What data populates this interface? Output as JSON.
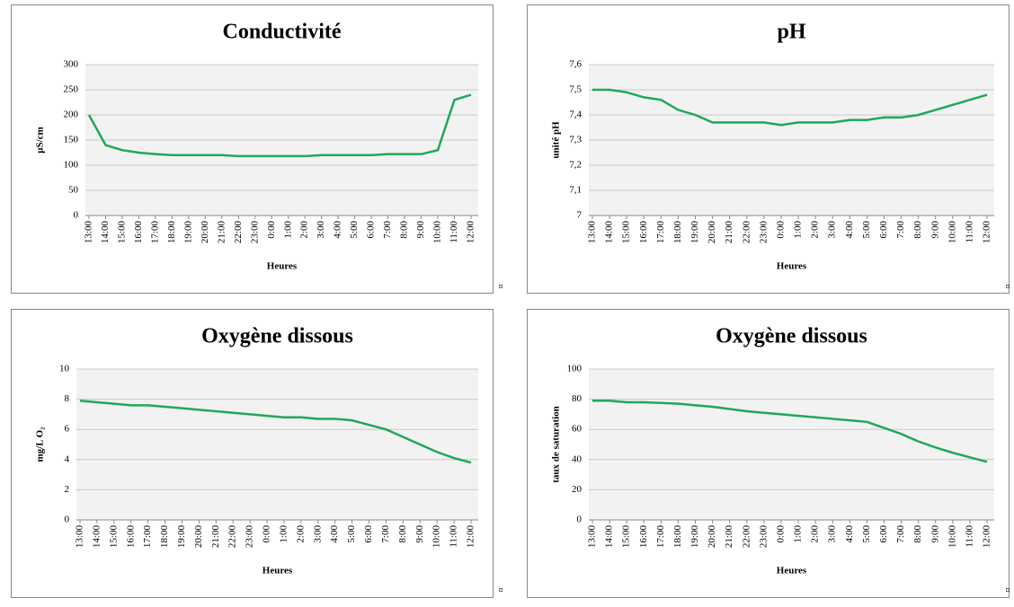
{
  "chart_data": [
    {
      "type": "line",
      "title": "Conductivité",
      "y_label": "µS/cm",
      "x_label": "Heures",
      "categories": [
        "13:00",
        "14:00",
        "15:00",
        "16:00",
        "17:00",
        "18:00",
        "19:00",
        "20:00",
        "21:00",
        "22:00",
        "23:00",
        "0:00",
        "1:00",
        "2:00",
        "3:00",
        "4:00",
        "5:00",
        "6:00",
        "7:00",
        "8:00",
        "9:00",
        "10:00",
        "11:00",
        "12:00"
      ],
      "series": [
        {
          "color": "#1fa85a",
          "values": [
            200,
            140,
            130,
            125,
            122,
            120,
            120,
            120,
            120,
            118,
            118,
            118,
            118,
            118,
            120,
            120,
            120,
            120,
            122,
            122,
            122,
            130,
            230,
            240
          ]
        }
      ],
      "ylim": [
        0,
        300
      ],
      "yticks": [
        0,
        50,
        100,
        150,
        200,
        250,
        300
      ],
      "grid": true
    },
    {
      "type": "line",
      "title": "pH",
      "y_label": "unité pH",
      "x_label": "Heures",
      "categories": [
        "13:00",
        "14:00",
        "15:00",
        "16:00",
        "17:00",
        "18:00",
        "19:00",
        "20:00",
        "21:00",
        "22:00",
        "23:00",
        "0:00",
        "1:00",
        "2:00",
        "3:00",
        "4:00",
        "5:00",
        "6:00",
        "7:00",
        "8:00",
        "9:00",
        "10:00",
        "11:00",
        "12:00"
      ],
      "series": [
        {
          "color": "#1fa85a",
          "values": [
            7.5,
            7.5,
            7.49,
            7.47,
            7.46,
            7.42,
            7.4,
            7.37,
            7.37,
            7.37,
            7.37,
            7.36,
            7.37,
            7.37,
            7.37,
            7.38,
            7.38,
            7.39,
            7.39,
            7.4,
            7.42,
            7.44,
            7.46,
            7.48
          ]
        }
      ],
      "ylim": [
        7,
        7.6
      ],
      "yticks": [
        7,
        {
          "value": 7.1,
          "label": "7,1"
        },
        {
          "value": 7.2,
          "label": "7,2"
        },
        {
          "value": 7.3,
          "label": "7,3"
        },
        {
          "value": 7.4,
          "label": "7,4"
        },
        {
          "value": 7.5,
          "label": "7,5"
        },
        {
          "value": 7.6,
          "label": "7,6"
        }
      ],
      "grid": true
    },
    {
      "type": "line",
      "title": "Oxygène dissous",
      "y_label": "mg/L O₂",
      "x_label": "Heures",
      "categories": [
        "13:00",
        "14:00",
        "15:00",
        "16:00",
        "17:00",
        "18:00",
        "19:00",
        "20:00",
        "21:00",
        "22:00",
        "23:00",
        "0:00",
        "1:00",
        "2:00",
        "3:00",
        "4:00",
        "5:00",
        "6:00",
        "7:00",
        "8:00",
        "9:00",
        "10:00",
        "11:00",
        "12:00"
      ],
      "series": [
        {
          "color": "#1fa85a",
          "values": [
            7.9,
            7.8,
            7.7,
            7.6,
            7.6,
            7.5,
            7.4,
            7.3,
            7.2,
            7.1,
            7.0,
            6.9,
            6.8,
            6.8,
            6.7,
            6.7,
            6.6,
            6.3,
            6.0,
            5.5,
            5.0,
            4.5,
            4.1,
            3.8
          ]
        }
      ],
      "ylim": [
        0,
        10
      ],
      "yticks": [
        0,
        2,
        4,
        6,
        8,
        10
      ],
      "grid": true
    },
    {
      "type": "line",
      "title": "Oxygène dissous",
      "y_label": "taux de saturation",
      "x_label": "Heures",
      "categories": [
        "13:00",
        "14:00",
        "15:00",
        "16:00",
        "17:00",
        "18:00",
        "19:00",
        "20:00",
        "21:00",
        "22:00",
        "23:00",
        "0:00",
        "1:00",
        "2:00",
        "3:00",
        "4:00",
        "5:00",
        "6:00",
        "7:00",
        "8:00",
        "9:00",
        "10:00",
        "11:00",
        "12:00"
      ],
      "series": [
        {
          "color": "#1fa85a",
          "values": [
            79,
            79,
            78,
            78,
            77.5,
            77,
            76,
            75,
            73.5,
            72,
            71,
            70,
            69,
            68,
            67,
            66,
            65,
            61,
            57,
            52,
            48,
            44.5,
            41.5,
            38.5
          ]
        }
      ],
      "ylim": [
        0,
        100
      ],
      "yticks": [
        0,
        20,
        40,
        60,
        80,
        100
      ],
      "grid": true
    }
  ],
  "paragraph_marks": [
    "¤",
    "¤",
    "¤",
    "¤"
  ]
}
